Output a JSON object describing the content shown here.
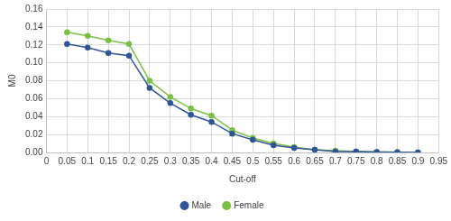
{
  "chart_data": {
    "type": "line",
    "x_label": "Cut-off",
    "y_label": "M0",
    "x": [
      0.05,
      0.1,
      0.15,
      0.2,
      0.25,
      0.3,
      0.35,
      0.4,
      0.45,
      0.5,
      0.55,
      0.6,
      0.65,
      0.7,
      0.75,
      0.8,
      0.85,
      0.9
    ],
    "series": [
      {
        "name": "Male",
        "color": "#2f5597",
        "marker": "circle",
        "line_style": "solid",
        "values": [
          0.121,
          0.117,
          0.111,
          0.108,
          0.072,
          0.055,
          0.042,
          0.034,
          0.021,
          0.014,
          0.008,
          0.005,
          0.003,
          0.001,
          0.001,
          0.0005,
          0.0002,
          0.0001
        ]
      },
      {
        "name": "Female",
        "color": "#7cbf45",
        "marker": "circle",
        "line_style": "solid",
        "values": [
          0.134,
          0.13,
          0.125,
          0.121,
          0.08,
          0.062,
          0.049,
          0.041,
          0.025,
          0.016,
          0.01,
          0.006,
          0.003,
          0.002,
          0.001,
          0.0005,
          0.0002,
          0.0001
        ]
      }
    ],
    "xlim": [
      0,
      0.95
    ],
    "xticks": [
      0,
      0.05,
      0.1,
      0.15,
      0.2,
      0.25,
      0.3,
      0.35,
      0.4,
      0.45,
      0.5,
      0.55,
      0.6,
      0.65,
      0.7,
      0.75,
      0.8,
      0.85,
      0.9,
      0.95
    ],
    "ylim": [
      0,
      0.16
    ],
    "yticks": [
      {
        "value": 0,
        "label": "0.00"
      },
      {
        "value": 0.02,
        "label": "0.02"
      },
      {
        "value": 0.04,
        "label": "0.04"
      },
      {
        "value": 0.06,
        "label": "0.06"
      },
      {
        "value": 0.08,
        "label": "0.08"
      },
      {
        "value": 0.1,
        "label": "0.10"
      },
      {
        "value": 0.12,
        "label": "0.12"
      },
      {
        "value": 0.14,
        "label": "0.14"
      },
      {
        "value": 0.16,
        "label": "0.16"
      }
    ],
    "grid": true,
    "legend": "bottom"
  }
}
